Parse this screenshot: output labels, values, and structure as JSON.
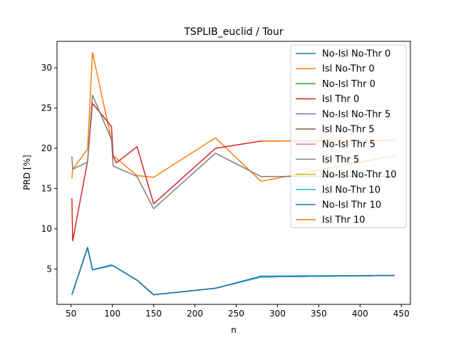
{
  "chart_data": {
    "type": "line",
    "title": "TSPLIB_euclid / Tour",
    "xlabel": "n",
    "ylabel": "PRD [%]",
    "xlim": [
      33,
      461
    ],
    "ylim": [
      0.6,
      33.3
    ],
    "xticks": [
      50,
      100,
      150,
      200,
      250,
      300,
      350,
      400,
      450
    ],
    "yticks": [
      5,
      10,
      15,
      20,
      25,
      30
    ],
    "grid": false,
    "legend_position": "top-right",
    "series": [
      {
        "name": "No-Isl No-Thr 0",
        "color": "#1f77b4",
        "x": [
          51,
          70,
          76,
          99,
          101,
          130,
          150,
          225,
          280,
          442
        ],
        "y": [
          1.8,
          7.6,
          4.9,
          5.4,
          5.4,
          3.6,
          1.8,
          2.6,
          4.0,
          4.2
        ]
      },
      {
        "name": "Isl No-Thr 0",
        "color": "#ff7f0e",
        "x": [
          51,
          52,
          70,
          76,
          99,
          101,
          130,
          150,
          225,
          280,
          442
        ],
        "y": [
          16.3,
          17.4,
          19.9,
          31.9,
          21.0,
          19.1,
          16.6,
          16.4,
          21.3,
          15.9,
          19.1
        ]
      },
      {
        "name": "No-Isl Thr 0",
        "color": "#2ca02c",
        "x": [
          51,
          70,
          76,
          99,
          101,
          130,
          150,
          225,
          280,
          442
        ],
        "y": [
          1.8,
          7.6,
          4.9,
          5.4,
          5.4,
          3.6,
          1.8,
          2.6,
          4.0,
          4.2
        ]
      },
      {
        "name": "Isl Thr 0",
        "color": "#d62728",
        "x": [
          51,
          52,
          70,
          76,
          99,
          101,
          105,
          130,
          150,
          225,
          280,
          442
        ],
        "y": [
          13.8,
          8.5,
          18.4,
          25.6,
          22.7,
          19.0,
          18.2,
          20.2,
          13.1,
          20.0,
          20.9,
          21.0
        ]
      },
      {
        "name": "No-Isl No-Thr 5",
        "color": "#9467bd",
        "x": [
          51,
          70,
          76,
          99,
          101,
          130,
          150,
          225,
          280,
          442
        ],
        "y": [
          1.8,
          7.6,
          4.9,
          5.4,
          5.4,
          3.6,
          1.8,
          2.6,
          4.0,
          4.2
        ]
      },
      {
        "name": "Isl No-Thr 5",
        "color": "#8c564b",
        "x": [
          51,
          70,
          76,
          99,
          101,
          130,
          150,
          225,
          280,
          442
        ],
        "y": [
          1.8,
          7.6,
          4.9,
          5.4,
          5.4,
          3.6,
          1.8,
          2.6,
          4.0,
          4.2
        ]
      },
      {
        "name": "No-Isl Thr 5",
        "color": "#e377c2",
        "x": [
          51,
          70,
          76,
          99,
          101,
          130,
          150,
          225,
          280,
          442
        ],
        "y": [
          1.8,
          7.6,
          4.9,
          5.4,
          5.4,
          3.6,
          1.8,
          2.6,
          4.0,
          4.2
        ]
      },
      {
        "name": "Isl Thr 5",
        "color": "#7f7f7f",
        "x": [
          51,
          52,
          70,
          76,
          99,
          101,
          130,
          150,
          225,
          280,
          442
        ],
        "y": [
          19.0,
          17.4,
          18.3,
          26.6,
          21.1,
          17.8,
          16.5,
          12.5,
          19.4,
          16.5,
          16.5
        ]
      },
      {
        "name": "No-Isl No-Thr 10",
        "color": "#bcbd22",
        "x": [
          51,
          70,
          76,
          99,
          101,
          130,
          150,
          225,
          280,
          442
        ],
        "y": [
          1.8,
          7.6,
          4.9,
          5.4,
          5.4,
          3.6,
          1.8,
          2.6,
          4.0,
          4.2
        ]
      },
      {
        "name": "Isl No-Thr 10",
        "color": "#17becf",
        "x": [
          51,
          70,
          76,
          99,
          101,
          130,
          150,
          225,
          280,
          442
        ],
        "y": [
          1.8,
          7.6,
          4.9,
          5.4,
          5.4,
          3.6,
          1.8,
          2.6,
          4.0,
          4.2
        ]
      },
      {
        "name": "No-Isl Thr 10",
        "color": "#1f77b4",
        "x": [
          51,
          70,
          76,
          99,
          101,
          130,
          150,
          225,
          280,
          442
        ],
        "y": [
          1.8,
          7.7,
          4.9,
          5.5,
          5.4,
          3.6,
          1.8,
          2.6,
          4.1,
          4.2
        ]
      },
      {
        "name": "Isl Thr 10",
        "color": "#ff7f0e",
        "x": [
          280,
          442
        ],
        "y": [
          20.9,
          21.0
        ]
      }
    ]
  }
}
